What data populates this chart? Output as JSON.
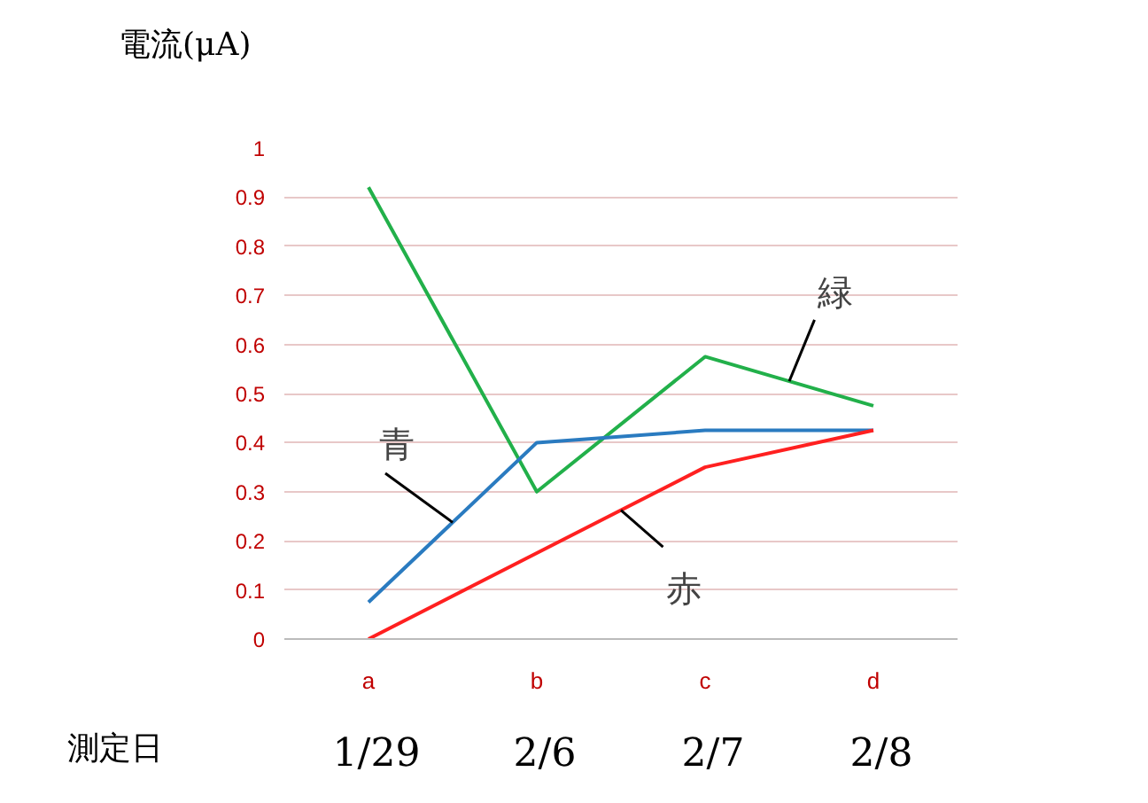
{
  "chart_data": {
    "type": "line",
    "ylabel": "電流(μA)",
    "categories": [
      "a",
      "b",
      "c",
      "d"
    ],
    "series": [
      {
        "name": "緑",
        "color": "#22b04a",
        "values": [
          0.92,
          0.3,
          0.575,
          0.475
        ]
      },
      {
        "name": "青",
        "color": "#2a7bc0",
        "values": [
          0.075,
          0.4,
          0.425,
          0.425
        ]
      },
      {
        "name": "赤",
        "color": "#ff2020",
        "values": [
          0.0,
          0.175,
          0.35,
          0.425
        ]
      }
    ],
    "ylim": [
      0,
      1
    ],
    "yticks": [
      0,
      0.1,
      0.2,
      0.3,
      0.4,
      0.5,
      0.6,
      0.7,
      0.8,
      0.9,
      1
    ],
    "grid": "y",
    "marker": "none",
    "line_style": "solid",
    "annotations": [
      "測定日",
      "1/29",
      "2/6",
      "2/7",
      "2/8"
    ]
  }
}
